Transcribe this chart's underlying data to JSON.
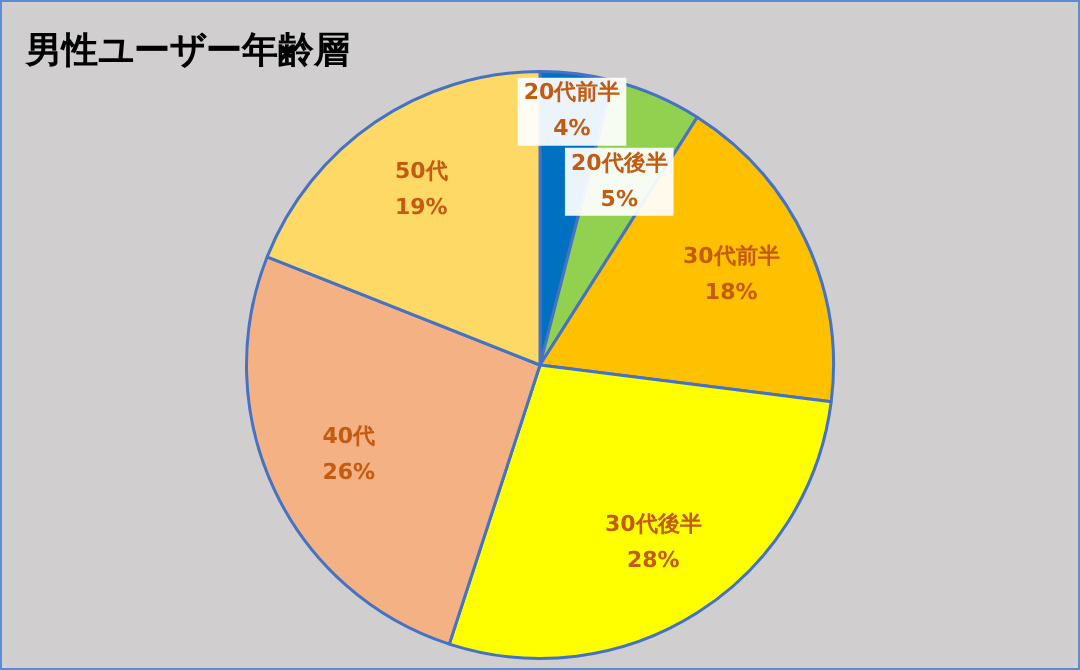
{
  "chart_data": {
    "type": "pie",
    "title": "男性ユーザー年齢層",
    "categories": [
      "20代前半",
      "20代後半",
      "30代前半",
      "30代後半",
      "40代",
      "50代"
    ],
    "values": [
      4,
      5,
      18,
      28,
      26,
      19
    ],
    "colors": [
      "#0070c0",
      "#92d050",
      "#ffc000",
      "#ffff00",
      "#f4b183",
      "#ffd966"
    ],
    "value_labels": [
      "4%",
      "5%",
      "18%",
      "28%",
      "26%",
      "19%"
    ],
    "legend": false
  }
}
